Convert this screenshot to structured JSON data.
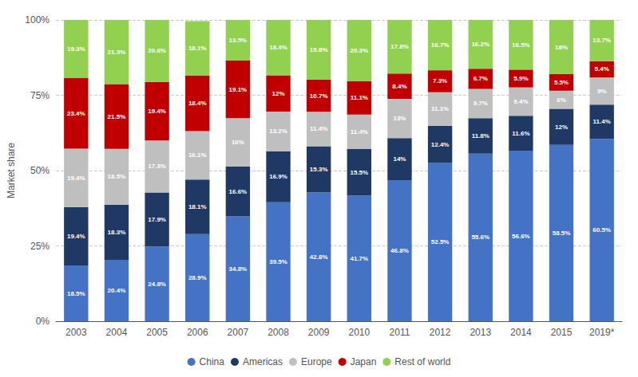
{
  "chart_data": {
    "type": "bar",
    "stacked": true,
    "data_labels": true,
    "grid": true,
    "legend": "bottom",
    "y_label": "Market share",
    "categories": [
      "2003",
      "2004",
      "2005",
      "2006",
      "2007",
      "2008",
      "2009",
      "2010",
      "2011",
      "2012",
      "2013",
      "2014",
      "2015",
      "2019*"
    ],
    "ylim": [
      0,
      100
    ],
    "yticks": [
      {
        "value": 0,
        "label": "0%"
      },
      {
        "value": 25,
        "label": "25%"
      },
      {
        "value": 50,
        "label": "50%"
      },
      {
        "value": 75,
        "label": "75%"
      },
      {
        "value": 100,
        "label": "100%"
      }
    ],
    "series": [
      {
        "name": "China",
        "color": "#4472c4",
        "values": [
          18.5,
          20.4,
          24.8,
          28.9,
          34.8,
          39.5,
          42.8,
          41.7,
          46.8,
          52.5,
          55.6,
          56.6,
          58.5,
          60.5
        ],
        "value_labels": [
          "18.5%",
          "20.4%",
          "24.8%",
          "28.9%",
          "34.8%",
          "39.5%",
          "42.8%",
          "41.7%",
          "46.8%",
          "52.5%",
          "55.6%",
          "56.6%",
          "58.5%",
          "60.5%"
        ]
      },
      {
        "name": "Americas",
        "color": "#1f3864",
        "values": [
          19.4,
          18.3,
          17.9,
          18.1,
          16.6,
          16.9,
          15.3,
          15.5,
          14.0,
          12.4,
          11.8,
          11.6,
          12.0,
          11.4
        ],
        "value_labels": [
          "19.4%",
          "18.3%",
          "17.9%",
          "18.1%",
          "16.6%",
          "16.9%",
          "15.3%",
          "15.5%",
          "14%",
          "12.4%",
          "11.8%",
          "11.6%",
          "12%",
          "11.4%"
        ]
      },
      {
        "name": "Europe",
        "color": "#bfbfbf",
        "values": [
          19.4,
          18.5,
          17.3,
          16.1,
          16.0,
          13.2,
          11.4,
          11.4,
          13.0,
          11.1,
          9.7,
          9.4,
          6.0,
          9.0
        ],
        "value_labels": [
          "19.4%",
          "18.5%",
          "17.3%",
          "16.1%",
          "16%",
          "13.2%",
          "11.4%",
          "11.4%",
          "13%",
          "11.1%",
          "9.7%",
          "9.4%",
          "6%",
          "9%"
        ]
      },
      {
        "name": "Japan",
        "color": "#c00000",
        "values": [
          23.4,
          21.5,
          19.4,
          18.4,
          19.1,
          12.0,
          10.7,
          11.1,
          8.4,
          7.3,
          6.7,
          5.9,
          5.5,
          5.4
        ],
        "value_labels": [
          "23.4%",
          "21.5%",
          "19.4%",
          "18.4%",
          "19.1%",
          "12%",
          "10.7%",
          "11.1%",
          "8.4%",
          "7.3%",
          "6.7%",
          "5.9%",
          "5.5%",
          "5.4%"
        ]
      },
      {
        "name": "Rest of world",
        "color": "#92d050",
        "values": [
          19.3,
          21.3,
          20.6,
          18.1,
          13.5,
          18.4,
          19.8,
          20.3,
          17.8,
          16.7,
          16.2,
          16.5,
          18.0,
          13.7
        ],
        "value_labels": [
          "19.3%",
          "21.3%",
          "20.6%",
          "18.1%",
          "13.5%",
          "18.4%",
          "19.8%",
          "20.3%",
          "17.8%",
          "16.7%",
          "16.2%",
          "16.5%",
          "18%",
          "13.7%"
        ]
      }
    ]
  }
}
